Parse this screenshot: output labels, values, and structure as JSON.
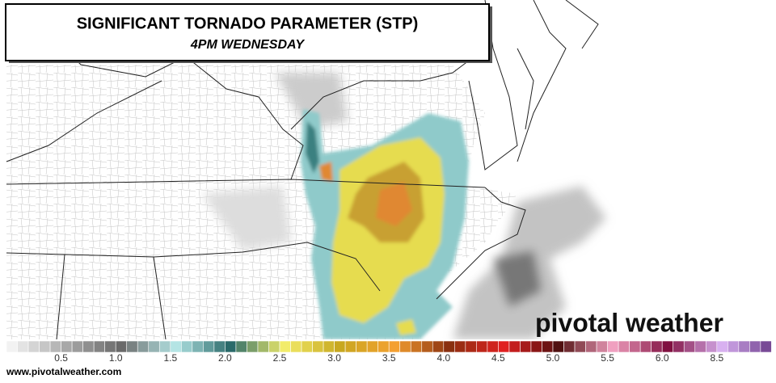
{
  "header": {
    "title": "SIGNIFICANT TORNADO PARAMETER (STP)",
    "subtitle": "4PM WEDNESDAY"
  },
  "colorbar": {
    "labels": [
      "0.5",
      "1.0",
      "1.5",
      "2.0",
      "2.5",
      "3.0",
      "3.5",
      "4.0",
      "4.5",
      "5.0",
      "5.5",
      "6.0",
      "8.5"
    ],
    "colors": [
      "#f2f2f2",
      "#a8a8a8",
      "#6a6a6a",
      "#b4e4e4",
      "#2a6a6a",
      "#f2ec6a",
      "#c8a820",
      "#f4a030",
      "#8a3010",
      "#e02020",
      "#501010",
      "#f0a0c0",
      "#801040",
      "#d8b0f0",
      "#603080"
    ]
  },
  "logo": "pivotal weather",
  "footer": "www.pivotalweather.com"
}
